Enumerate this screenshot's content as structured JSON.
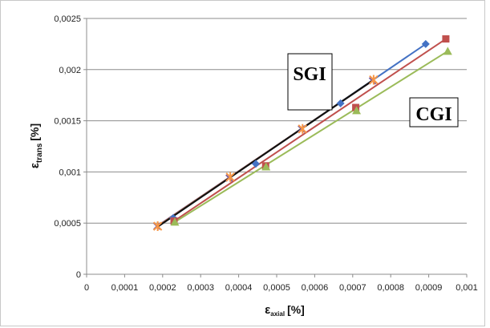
{
  "chart_data": {
    "type": "scatter",
    "title": "",
    "xlabel": {
      "main": "ε",
      "sub": "axial",
      "unit": "[%]"
    },
    "ylabel": {
      "main": "ε",
      "sub": "trans",
      "unit": "[%]"
    },
    "xlim": [
      0,
      0.001
    ],
    "ylim": [
      0,
      0.0025
    ],
    "x_ticks": [
      "0",
      "0,0001",
      "0,0002",
      "0,0003",
      "0,0004",
      "0,0005",
      "0,0006",
      "0,0007",
      "0,0008",
      "0,0009",
      "0,001"
    ],
    "y_ticks": [
      "0",
      "0,0005",
      "0,001",
      "0,0015",
      "0,002",
      "0,0025"
    ],
    "grid": "horizontal",
    "legend": "none",
    "annotations": [
      "SGI",
      "CGI"
    ],
    "series": [
      {
        "color": "#4472c4",
        "marker": "diamond",
        "x": [
          0.000228,
          0.000445,
          0.000668,
          0.000892
        ],
        "y": [
          0.00055,
          0.00108,
          0.00167,
          0.00225
        ],
        "fit": [
          [
            0.000185,
            0.00046
          ],
          [
            0.000892,
            0.00225
          ]
        ]
      },
      {
        "color": "#c0504d",
        "marker": "square",
        "x": [
          0.00023,
          0.000471,
          0.000708,
          0.000945
        ],
        "y": [
          0.00052,
          0.00106,
          0.00163,
          0.0023
        ],
        "fit": [
          [
            0.00023,
            0.00052
          ],
          [
            0.000945,
            0.0023
          ]
        ]
      },
      {
        "color": "#9bbb59",
        "marker": "triangle",
        "x": [
          0.000232,
          0.000472,
          0.00071,
          0.00095
        ],
        "y": [
          0.00051,
          0.00105,
          0.0016,
          0.00218
        ],
        "fit": [
          [
            0.000232,
            0.00051
          ],
          [
            0.00095,
            0.00218
          ]
        ]
      },
      {
        "color": "#8064a2",
        "marker": "x",
        "x": [
          0.000185,
          0.000375,
          0.000565,
          0.000752
        ],
        "y": [
          0.00047,
          0.00094,
          0.00142,
          0.00189
        ],
        "fit": [
          [
            0.000185,
            0.00047
          ],
          [
            0.000752,
            0.00189
          ]
        ]
      },
      {
        "color": "#f79646",
        "marker": "star",
        "x": [
          0.000187,
          0.000378,
          0.000568,
          0.000755
        ],
        "y": [
          0.00047,
          0.00095,
          0.00142,
          0.0019
        ],
        "fit": [
          [
            0.000187,
            0.00047
          ],
          [
            0.000755,
            0.0019
          ]
        ]
      },
      {
        "color": "#111111",
        "marker": "none",
        "x": [],
        "y": [],
        "fit": [
          [
            0.000185,
            0.00046
          ],
          [
            0.000755,
            0.0019
          ]
        ]
      }
    ]
  }
}
